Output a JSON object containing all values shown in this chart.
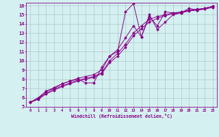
{
  "bg_color": "#d4f0f0",
  "line_color": "#880088",
  "grid_color": "#b0c8c8",
  "xlabel": "Windchill (Refroidissement éolien,°C)",
  "xlim": [
    -0.5,
    23.5
  ],
  "ylim": [
    5,
    16.3
  ],
  "xticks": [
    0,
    1,
    2,
    3,
    4,
    5,
    6,
    7,
    8,
    9,
    10,
    11,
    12,
    13,
    14,
    15,
    16,
    17,
    18,
    19,
    20,
    21,
    22,
    23
  ],
  "yticks": [
    5,
    6,
    7,
    8,
    9,
    10,
    11,
    12,
    13,
    14,
    15,
    16
  ],
  "lines": [
    {
      "x": [
        0,
        1,
        2,
        3,
        4,
        5,
        6,
        7,
        8,
        9,
        10,
        11,
        12,
        13,
        14,
        15,
        16,
        17,
        18,
        19,
        20,
        21,
        22,
        23
      ],
      "y": [
        5.5,
        5.9,
        6.7,
        7.0,
        7.5,
        7.8,
        8.0,
        7.6,
        7.6,
        9.3,
        10.5,
        11.0,
        15.3,
        16.2,
        12.6,
        14.8,
        13.8,
        15.3,
        15.2,
        15.2,
        15.7,
        15.5,
        15.7,
        15.9
      ]
    },
    {
      "x": [
        0,
        1,
        2,
        3,
        4,
        5,
        6,
        7,
        8,
        9,
        10,
        11,
        12,
        13,
        14,
        15,
        16,
        17,
        18,
        19,
        20,
        21,
        22,
        23
      ],
      "y": [
        5.5,
        6.0,
        6.7,
        7.1,
        7.5,
        7.8,
        8.1,
        8.3,
        8.5,
        9.0,
        10.5,
        11.2,
        12.5,
        13.8,
        12.6,
        15.0,
        13.4,
        14.2,
        15.0,
        15.2,
        15.5,
        15.5,
        15.7,
        15.9
      ]
    },
    {
      "x": [
        0,
        1,
        2,
        3,
        4,
        5,
        6,
        7,
        8,
        9,
        10,
        11,
        12,
        13,
        14,
        15,
        16,
        17,
        18,
        19,
        20,
        21,
        22,
        23
      ],
      "y": [
        5.5,
        5.9,
        6.5,
        6.9,
        7.3,
        7.6,
        7.9,
        8.1,
        8.3,
        8.7,
        10.0,
        10.8,
        11.8,
        13.0,
        13.8,
        14.5,
        14.8,
        15.0,
        15.2,
        15.3,
        15.5,
        15.6,
        15.7,
        15.9
      ]
    },
    {
      "x": [
        0,
        1,
        2,
        3,
        4,
        5,
        6,
        7,
        8,
        9,
        10,
        11,
        12,
        13,
        14,
        15,
        16,
        17,
        18,
        19,
        20,
        21,
        22,
        23
      ],
      "y": [
        5.5,
        5.8,
        6.4,
        6.8,
        7.2,
        7.5,
        7.8,
        8.0,
        8.2,
        8.6,
        9.8,
        10.5,
        11.5,
        12.7,
        13.5,
        14.2,
        14.6,
        14.9,
        15.1,
        15.2,
        15.4,
        15.5,
        15.6,
        15.8
      ]
    }
  ]
}
